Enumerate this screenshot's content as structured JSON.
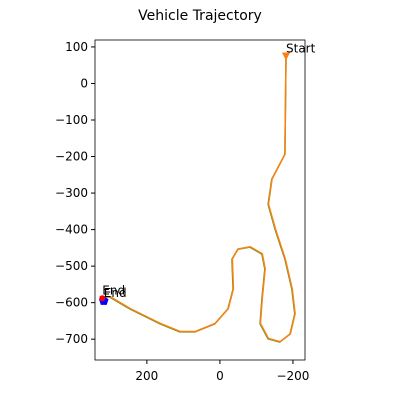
{
  "chart_data": {
    "type": "line",
    "title": "Vehicle Trajectory",
    "xlim": [
      342,
      -233
    ],
    "ylim": [
      -757,
      119
    ],
    "xticks": [
      200,
      0,
      {
        "value": -200,
        "label": "−200"
      }
    ],
    "yticks": [
      100,
      0,
      {
        "value": -100,
        "label": "−100"
      },
      {
        "value": -200,
        "label": "−200"
      },
      {
        "value": -300,
        "label": "−300"
      },
      {
        "value": -400,
        "label": "−400"
      },
      {
        "value": -500,
        "label": "−500"
      },
      {
        "value": -600,
        "label": "−600"
      },
      {
        "value": -700,
        "label": "−700"
      }
    ],
    "series": [
      {
        "color": "#2ca02c",
        "x": [
          -181,
          -178,
          -142,
          -132,
          -151,
          -178,
          -197,
          -205,
          -192,
          -164,
          -132,
          -110,
          -115,
          -123,
          -115,
          -82,
          -49,
          -33,
          -36,
          -22,
          14,
          68,
          110,
          164,
          247,
          301,
          329
        ],
        "y": [
          74,
          -194,
          -262,
          -331,
          -399,
          -481,
          -563,
          -631,
          -686,
          -708,
          -699,
          -658,
          -590,
          -508,
          -467,
          -448,
          -454,
          -481,
          -563,
          -617,
          -658,
          -680,
          -680,
          -658,
          -617,
          -585,
          -585
        ]
      },
      {
        "color": "#ff7f0e",
        "x": [
          -181,
          -178,
          -143,
          -133,
          -152,
          -179,
          -198,
          -206,
          -193,
          -165,
          -133,
          -111,
          -116,
          -124,
          -116,
          -83,
          -50,
          -34,
          -37,
          -23,
          13,
          67,
          109,
          163,
          246,
          300,
          328
        ],
        "y": [
          74,
          -194,
          -261,
          -330,
          -398,
          -480,
          -562,
          -630,
          -685,
          -707,
          -698,
          -657,
          -589,
          -507,
          -466,
          -447,
          -453,
          -480,
          -562,
          -616,
          -657,
          -679,
          -679,
          -657,
          -616,
          -584,
          -584
        ]
      }
    ],
    "markers": [
      {
        "x": -181,
        "y": 74,
        "color": "#ff7f0e",
        "shape": "triangle"
      },
      {
        "x": 318,
        "y": -595,
        "color": "#0000ff",
        "shape": "pentagon"
      },
      {
        "x": 322,
        "y": -588,
        "color": "#ff0000",
        "shape": "circle"
      }
    ],
    "annotations": [
      {
        "text": "Start",
        "x": -181,
        "y": 74
      },
      {
        "text": "End",
        "x": 318,
        "y": -595
      },
      {
        "text": "End",
        "x": 322,
        "y": -588
      }
    ]
  }
}
